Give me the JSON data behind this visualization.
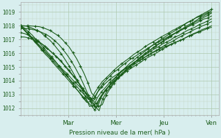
{
  "bg_color": "#d8eeee",
  "grid_color_major": "#b8c8b8",
  "grid_color_minor": "#c8d8c8",
  "line_color": "#1a5c1a",
  "marker_color": "#1a5c1a",
  "xlabel": "Pression niveau de la mer( hPa )",
  "ylabel_ticks": [
    1012,
    1013,
    1014,
    1015,
    1016,
    1017,
    1018,
    1019
  ],
  "ylim": [
    1011.5,
    1019.7
  ],
  "xlim": [
    0.0,
    4.15
  ],
  "figsize": [
    3.2,
    2.0
  ],
  "dpi": 100,
  "xtick_positions": [
    1,
    2,
    3,
    4
  ],
  "xtick_labels": [
    "Mar",
    "Mer",
    "Jeu",
    "Ven"
  ]
}
